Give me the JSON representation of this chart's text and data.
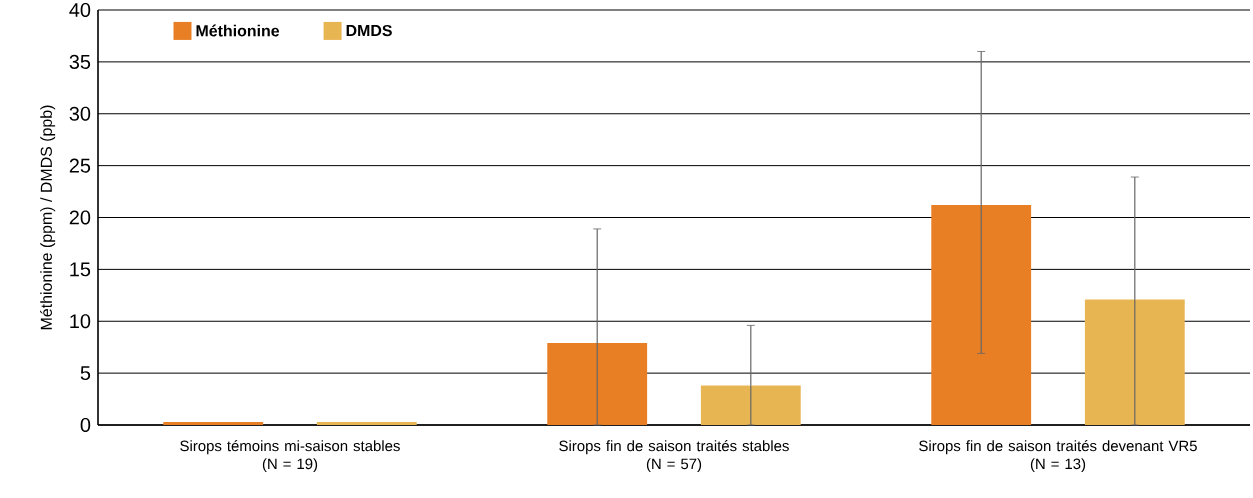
{
  "chart_data": {
    "type": "bar",
    "ylabel": "Méthionine (ppm) / DMDS (ppb)",
    "categories": [
      "Sirops témoins mi-saison stables\n(N = 19)",
      "Sirops fin de saison traités stables\n(N = 57)",
      "Sirops fin de saison traités devenant VR5\n(N = 13)"
    ],
    "series": [
      {
        "name": "Méthionine",
        "color": "#e97f25",
        "values": [
          0.3,
          7.9,
          21.2
        ],
        "errors": [
          null,
          [
            0,
            18.9
          ],
          [
            6.9,
            36.0
          ]
        ]
      },
      {
        "name": "DMDS",
        "color": "#e8b553",
        "values": [
          0.3,
          3.8,
          12.1
        ],
        "errors": [
          null,
          [
            0,
            9.6
          ],
          [
            0,
            23.9
          ]
        ]
      }
    ],
    "ylim": [
      0,
      40
    ],
    "yticks": [
      0,
      5,
      10,
      15,
      20,
      25,
      30,
      35,
      40
    ],
    "grid": "y",
    "legend": "top left"
  }
}
